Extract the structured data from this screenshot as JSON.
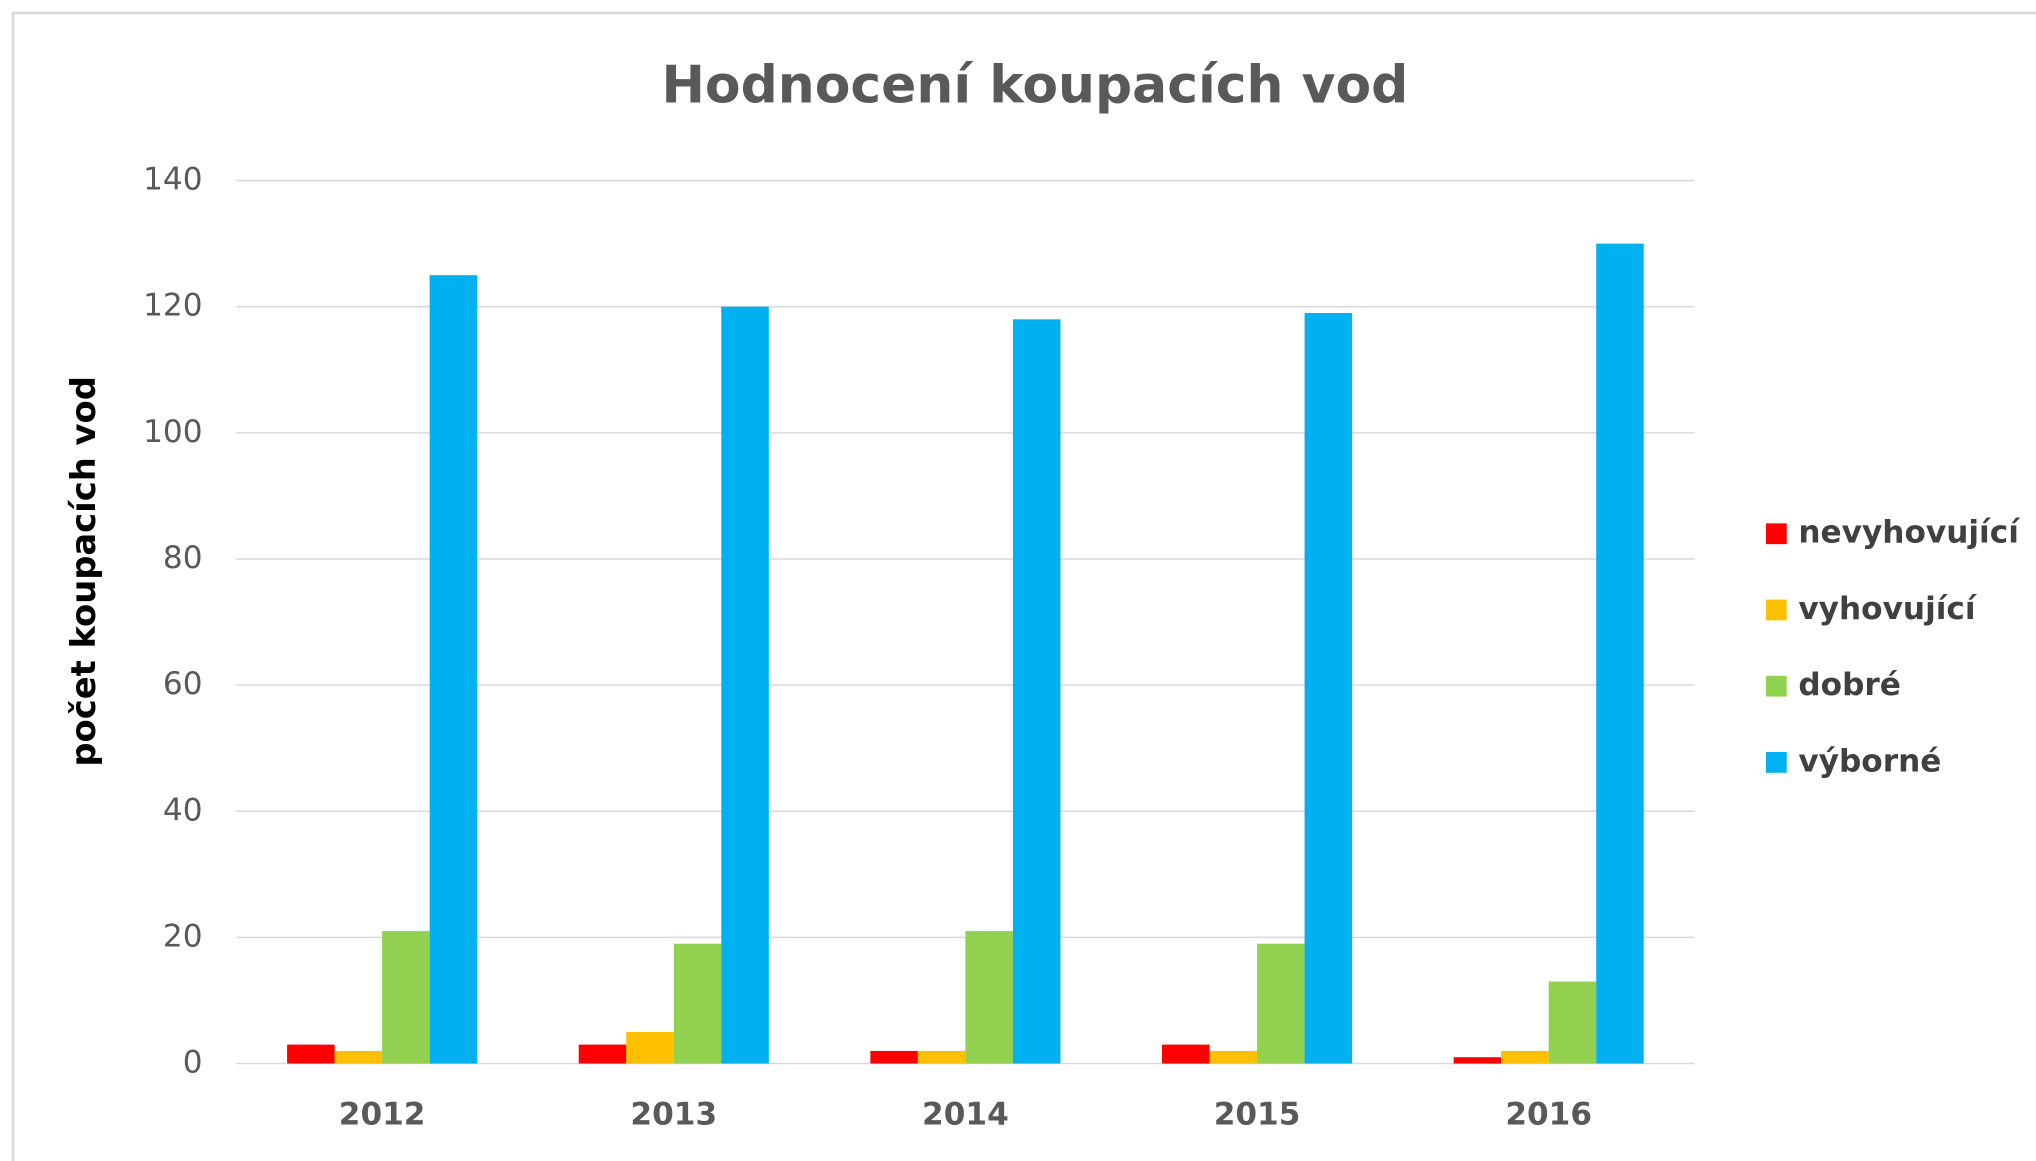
{
  "chart_data": {
    "type": "bar",
    "title": "Hodnocení koupacích vod",
    "y_label": "počet koupacích vod",
    "categories": [
      "2012",
      "2013",
      "2014",
      "2015",
      "2016"
    ],
    "series": [
      {
        "name": "nevyhovující",
        "color": "#ff0000",
        "values": [
          3,
          3,
          2,
          3,
          1
        ]
      },
      {
        "name": "vyhovující",
        "color": "#ffc000",
        "values": [
          2,
          5,
          2,
          2,
          2
        ]
      },
      {
        "name": "dobré",
        "color": "#92d050",
        "values": [
          21,
          19,
          21,
          19,
          13
        ]
      },
      {
        "name": "výborné",
        "color": "#00b0f0",
        "values": [
          125,
          120,
          118,
          119,
          130
        ]
      }
    ],
    "ylim": [
      0,
      140
    ],
    "yticks": [
      0,
      20,
      40,
      60,
      80,
      100,
      120,
      140
    ],
    "grid": true,
    "legend": "right"
  }
}
